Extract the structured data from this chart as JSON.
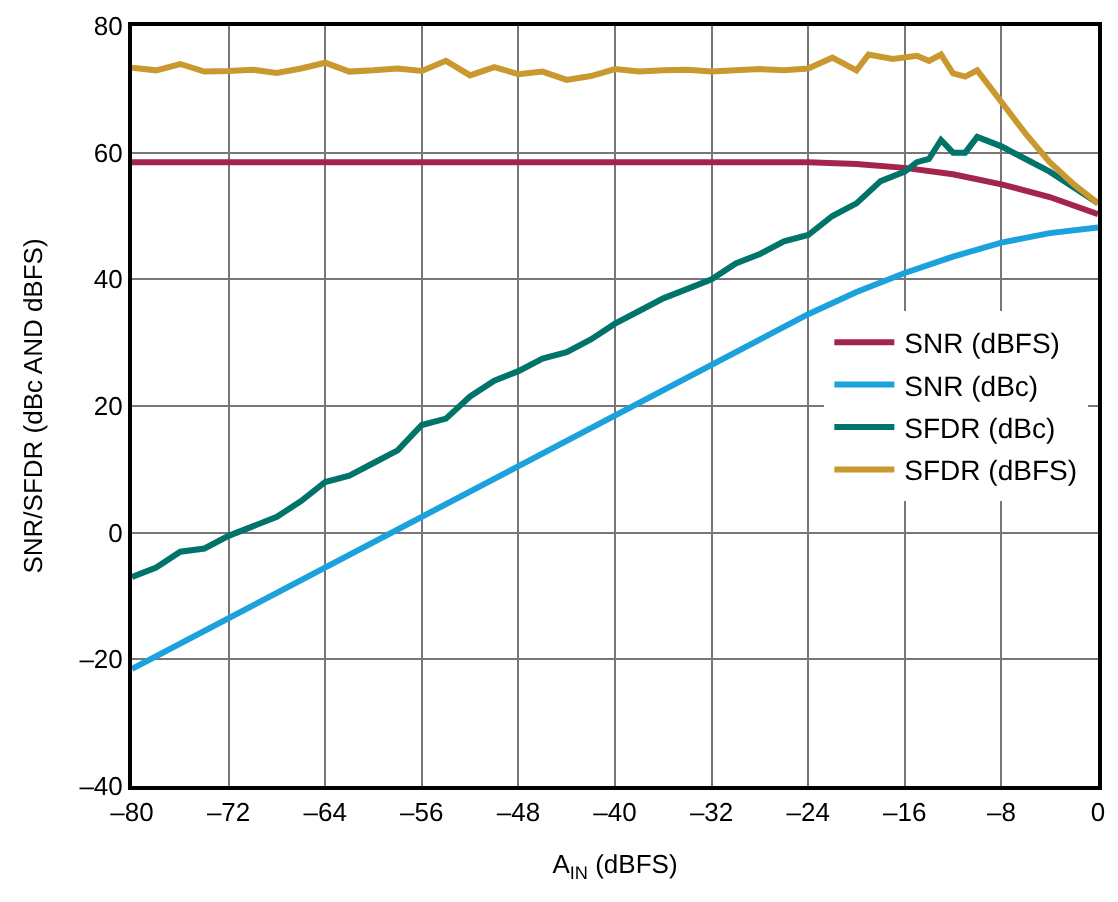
{
  "chart_data": {
    "type": "line",
    "xlabel": "A$_{IN}$ (dBFS)",
    "ylabel": "SNR/SFDR (dBc AND dBFS)",
    "xlim": [
      -80,
      0
    ],
    "xticks": [
      {
        "value": -80,
        "label": "–80"
      },
      {
        "value": -72,
        "label": "–72"
      },
      {
        "value": -64,
        "label": "–64"
      },
      {
        "value": -56,
        "label": "–56"
      },
      {
        "value": -48,
        "label": "–48"
      },
      {
        "value": -40,
        "label": "–40"
      },
      {
        "value": -32,
        "label": "–32"
      },
      {
        "value": -24,
        "label": "–24"
      },
      {
        "value": -16,
        "label": "–16"
      },
      {
        "value": -8,
        "label": "–8"
      },
      0
    ],
    "ylim": [
      -40,
      80
    ],
    "yticks": [
      {
        "value": -40,
        "label": "–40"
      },
      {
        "value": -20,
        "label": "–20"
      },
      0,
      20,
      40,
      60,
      80
    ],
    "grid": true,
    "legend": "right",
    "line_style": "solid",
    "marker": "none",
    "series": [
      {
        "name": "SNR (dBFS)",
        "color": "#a3254c",
        "x": [
          -80,
          -24,
          -20,
          -16,
          -12,
          -8,
          -4,
          0
        ],
        "values": [
          58.5,
          58.5,
          58.2,
          57.6,
          56.6,
          55.0,
          53.0,
          50.3
        ]
      },
      {
        "name": "SNR (dBc)",
        "color": "#1ba1dc",
        "x": [
          -80,
          -24,
          -20,
          -16,
          -12,
          -8,
          -4,
          0
        ],
        "values": [
          -21.5,
          34.5,
          38.0,
          41.0,
          43.6,
          45.8,
          47.3,
          48.2
        ]
      },
      {
        "name": "SFDR (dBc)",
        "color": "#00736a",
        "x": [
          -80,
          -78,
          -76,
          -74,
          -72,
          -70,
          -68,
          -66,
          -64,
          -62,
          -60,
          -58,
          -56,
          -54,
          -52,
          -50,
          -48,
          -46,
          -44,
          -42,
          -40,
          -38,
          -36,
          -34,
          -32,
          -30,
          -28,
          -26,
          -24,
          -22,
          -20,
          -18,
          -16,
          -15,
          -14,
          -13,
          -12,
          -11,
          -10,
          -8,
          -6,
          -4,
          -2,
          0
        ],
        "values": [
          -7,
          -5.5,
          -3,
          -2.5,
          -0.5,
          1,
          2.5,
          5,
          8,
          9,
          11,
          13,
          17,
          18,
          21.5,
          24,
          25.5,
          27.5,
          28.5,
          30.5,
          33,
          35,
          37,
          38.5,
          40,
          42.5,
          44,
          46,
          47,
          50,
          52,
          55.5,
          57,
          58.5,
          59,
          62,
          60,
          60,
          62.5,
          61,
          59,
          57,
          54.5,
          52
        ]
      },
      {
        "name": "SFDR (dBFS)",
        "color": "#c9982e",
        "x": [
          -80,
          -78,
          -76,
          -74,
          -72,
          -70,
          -68,
          -66,
          -64,
          -62,
          -60,
          -58,
          -56,
          -54,
          -52,
          -50,
          -48,
          -46,
          -44,
          -42,
          -40,
          -38,
          -36,
          -34,
          -32,
          -30,
          -28,
          -26,
          -24,
          -22,
          -20,
          -19,
          -17,
          -15,
          -14,
          -13,
          -12,
          -11,
          -10,
          -8,
          -6,
          -4,
          -2,
          0
        ],
        "values": [
          73.4,
          73.0,
          74.0,
          72.8,
          72.9,
          73.1,
          72.6,
          73.3,
          74.2,
          72.8,
          73.0,
          73.3,
          72.9,
          74.5,
          72.2,
          73.5,
          72.4,
          72.8,
          71.5,
          72.1,
          73.2,
          72.8,
          73.0,
          73.1,
          72.8,
          73.0,
          73.2,
          73.0,
          73.3,
          75.0,
          73.0,
          75.5,
          74.8,
          75.3,
          74.5,
          75.5,
          72.5,
          72.0,
          73.0,
          68,
          63,
          58.5,
          55,
          52
        ]
      }
    ]
  }
}
